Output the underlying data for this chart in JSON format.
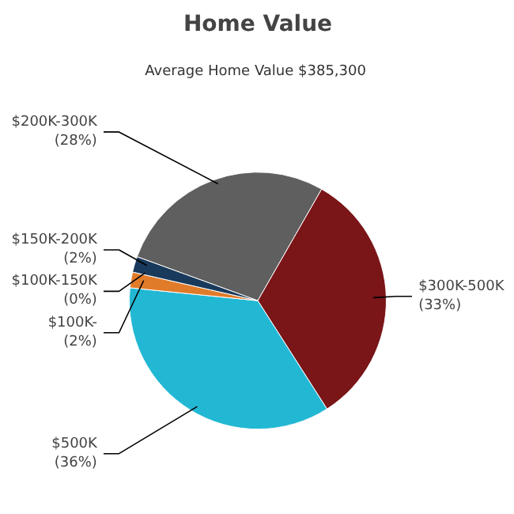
{
  "chart_data": {
    "type": "pie",
    "title": "Home Value",
    "subtitle": "Average Home Value  $385,300",
    "categories": [
      "$200K-300K",
      "$300K-500K",
      "$500K",
      "$100K-",
      "$100K-150K",
      "$150K-200K"
    ],
    "values": [
      28,
      33,
      36,
      2,
      0,
      2
    ],
    "value_labels": [
      "(28%)",
      "(33%)",
      "(36%)",
      "(2%)",
      "(0%)",
      "(2%)"
    ],
    "colors": [
      "#5f5f5f",
      "#7a1518",
      "#22b8d4",
      "#e07b2a",
      "#b04020",
      "#1a3a5c"
    ]
  }
}
